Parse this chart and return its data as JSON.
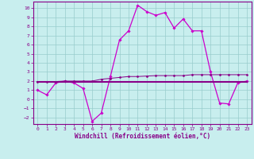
{
  "xlabel": "Windchill (Refroidissement éolien,°C)",
  "xlim": [
    -0.5,
    23.5
  ],
  "ylim": [
    -2.7,
    10.7
  ],
  "xticks": [
    0,
    1,
    2,
    3,
    4,
    5,
    6,
    7,
    8,
    9,
    10,
    11,
    12,
    13,
    14,
    15,
    16,
    17,
    18,
    19,
    20,
    21,
    22,
    23
  ],
  "yticks": [
    -2,
    -1,
    0,
    1,
    2,
    3,
    4,
    5,
    6,
    7,
    8,
    9,
    10
  ],
  "bg_color": "#c8eeee",
  "grid_color": "#98cccc",
  "line_color": "#880088",
  "line_color2": "#cc00cc",
  "line1_x": [
    0,
    1,
    2,
    3,
    4,
    5,
    6,
    7,
    8,
    9,
    10,
    11,
    12,
    13,
    14,
    15,
    16,
    17,
    18,
    19,
    20,
    21,
    22,
    23
  ],
  "line1_y": [
    1.0,
    0.5,
    1.8,
    2.0,
    1.8,
    1.2,
    -2.4,
    -1.5,
    2.5,
    6.5,
    7.5,
    10.3,
    9.6,
    9.2,
    9.5,
    7.8,
    8.8,
    7.5,
    7.5,
    3.0,
    -0.4,
    -0.5,
    1.8,
    2.0
  ],
  "line2_x": [
    0,
    1,
    2,
    3,
    4,
    5,
    6,
    7,
    8,
    9,
    10,
    11,
    12,
    13,
    14,
    15,
    16,
    17,
    18,
    19,
    20,
    21,
    22,
    23
  ],
  "line2_y": [
    1.9,
    1.9,
    1.9,
    1.9,
    1.9,
    1.9,
    1.9,
    1.9,
    1.9,
    1.9,
    1.9,
    1.9,
    1.9,
    1.9,
    1.9,
    1.9,
    1.9,
    1.9,
    1.9,
    1.9,
    1.9,
    1.9,
    1.9,
    1.9
  ],
  "line3_x": [
    0,
    1,
    2,
    3,
    4,
    5,
    6,
    7,
    8,
    9,
    10,
    11,
    12,
    13,
    14,
    15,
    16,
    17,
    18,
    19,
    20,
    21,
    22,
    23
  ],
  "line3_y": [
    1.9,
    1.9,
    1.95,
    2.0,
    2.0,
    2.0,
    2.0,
    2.2,
    2.3,
    2.4,
    2.5,
    2.5,
    2.55,
    2.6,
    2.6,
    2.6,
    2.6,
    2.7,
    2.7,
    2.7,
    2.7,
    2.7,
    2.7,
    2.7
  ],
  "line4_x": [
    0,
    1,
    2,
    3,
    4,
    5,
    6,
    7,
    8,
    9,
    10,
    11,
    12,
    13,
    14,
    15,
    16,
    17,
    18,
    19,
    20,
    21,
    22,
    23
  ],
  "line4_y": [
    1.9,
    1.9,
    1.9,
    1.9,
    1.9,
    1.9,
    1.9,
    1.9,
    1.9,
    1.9,
    1.9,
    1.9,
    1.9,
    1.9,
    1.9,
    1.9,
    1.9,
    1.9,
    1.9,
    1.9,
    1.9,
    1.9,
    1.9,
    1.9
  ]
}
